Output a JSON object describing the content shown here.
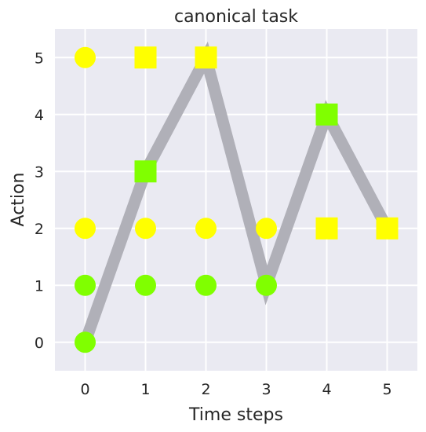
{
  "chart_data": {
    "type": "scatter",
    "title": "canonical task",
    "xlabel": "Time steps",
    "ylabel": "Action",
    "xlim": [
      -0.5,
      5.5
    ],
    "ylim": [
      -0.5,
      5.5
    ],
    "xticks": [
      "0",
      "1",
      "2",
      "3",
      "4",
      "5"
    ],
    "yticks": [
      "0",
      "1",
      "2",
      "3",
      "4",
      "5"
    ],
    "grid": true,
    "background_color": "#eaeaf2",
    "path": {
      "color": "#b0b0b8",
      "x": [
        0,
        1,
        2,
        3,
        4,
        5
      ],
      "y": [
        0,
        3,
        5,
        1,
        4,
        2
      ]
    },
    "points": [
      {
        "x": 0,
        "y": 5,
        "shape": "circle",
        "color": "#ffff00"
      },
      {
        "x": 0,
        "y": 2,
        "shape": "circle",
        "color": "#ffff00"
      },
      {
        "x": 0,
        "y": 1,
        "shape": "circle",
        "color": "#80ff00"
      },
      {
        "x": 0,
        "y": 0,
        "shape": "circle",
        "color": "#80ff00"
      },
      {
        "x": 1,
        "y": 5,
        "shape": "square",
        "color": "#ffff00"
      },
      {
        "x": 1,
        "y": 3,
        "shape": "square",
        "color": "#80ff00"
      },
      {
        "x": 1,
        "y": 2,
        "shape": "circle",
        "color": "#ffff00"
      },
      {
        "x": 1,
        "y": 1,
        "shape": "circle",
        "color": "#80ff00"
      },
      {
        "x": 2,
        "y": 5,
        "shape": "square",
        "color": "#ffff00"
      },
      {
        "x": 2,
        "y": 2,
        "shape": "circle",
        "color": "#ffff00"
      },
      {
        "x": 2,
        "y": 1,
        "shape": "circle",
        "color": "#80ff00"
      },
      {
        "x": 3,
        "y": 2,
        "shape": "circle",
        "color": "#ffff00"
      },
      {
        "x": 3,
        "y": 1,
        "shape": "circle",
        "color": "#80ff00"
      },
      {
        "x": 4,
        "y": 4,
        "shape": "square",
        "color": "#80ff00"
      },
      {
        "x": 4,
        "y": 2,
        "shape": "square",
        "color": "#ffff00"
      },
      {
        "x": 5,
        "y": 2,
        "shape": "square",
        "color": "#ffff00"
      }
    ]
  }
}
